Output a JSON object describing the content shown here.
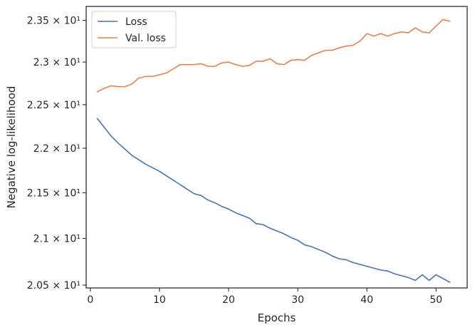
{
  "chart_data": {
    "type": "line",
    "title": "",
    "xlabel": "Epochs",
    "ylabel": "Negative log-likelihood",
    "xlim": [
      -0.6,
      54.5
    ],
    "ylim": [
      20.47,
      23.67
    ],
    "yscale": "log",
    "grid": false,
    "legend_position": "top-left",
    "x_ticks": [
      0,
      10,
      20,
      30,
      40,
      50
    ],
    "x_tick_labels": [
      "0",
      "10",
      "20",
      "30",
      "40",
      "50"
    ],
    "y_ticks": [
      20.5,
      21.0,
      21.5,
      22.0,
      22.5,
      23.0,
      23.5
    ],
    "y_tick_labels": [
      "2.05 × 10¹",
      "2.1 × 10¹",
      "2.15 × 10¹",
      "2.2 × 10¹",
      "2.25 × 10¹",
      "2.3 × 10¹",
      "2.35 × 10¹"
    ],
    "x": [
      1,
      2,
      3,
      4,
      5,
      6,
      7,
      8,
      9,
      10,
      11,
      12,
      13,
      14,
      15,
      16,
      17,
      18,
      19,
      20,
      21,
      22,
      23,
      24,
      25,
      26,
      27,
      28,
      29,
      30,
      31,
      32,
      33,
      34,
      35,
      36,
      37,
      38,
      39,
      40,
      41,
      42,
      43,
      44,
      45,
      46,
      47,
      48,
      49,
      50,
      51,
      52
    ],
    "series": [
      {
        "name": "Loss",
        "color": "#4c72b0",
        "values": [
          22.34,
          22.24,
          22.14,
          22.06,
          21.99,
          21.92,
          21.87,
          21.82,
          21.78,
          21.74,
          21.69,
          21.64,
          21.59,
          21.54,
          21.49,
          21.47,
          21.42,
          21.39,
          21.35,
          21.32,
          21.28,
          21.25,
          21.22,
          21.16,
          21.15,
          21.11,
          21.08,
          21.05,
          21.01,
          20.98,
          20.93,
          20.91,
          20.88,
          20.85,
          20.81,
          20.78,
          20.77,
          20.74,
          20.72,
          20.7,
          20.68,
          20.66,
          20.65,
          20.62,
          20.6,
          20.58,
          20.55,
          20.61,
          20.55,
          20.61,
          20.57,
          20.53
        ]
      },
      {
        "name": "Val. loss",
        "color": "#dd8452",
        "values": [
          22.65,
          22.69,
          22.72,
          22.71,
          22.71,
          22.74,
          22.81,
          22.83,
          22.83,
          22.85,
          22.87,
          22.92,
          22.97,
          22.97,
          22.97,
          22.98,
          22.95,
          22.95,
          22.99,
          23.0,
          22.97,
          22.95,
          22.96,
          23.01,
          23.01,
          23.04,
          22.98,
          22.97,
          23.02,
          23.03,
          23.02,
          23.08,
          23.11,
          23.14,
          23.14,
          23.17,
          23.19,
          23.2,
          23.25,
          23.34,
          23.31,
          23.34,
          23.31,
          23.34,
          23.36,
          23.35,
          23.41,
          23.36,
          23.35,
          23.43,
          23.51,
          23.49
        ]
      }
    ]
  }
}
